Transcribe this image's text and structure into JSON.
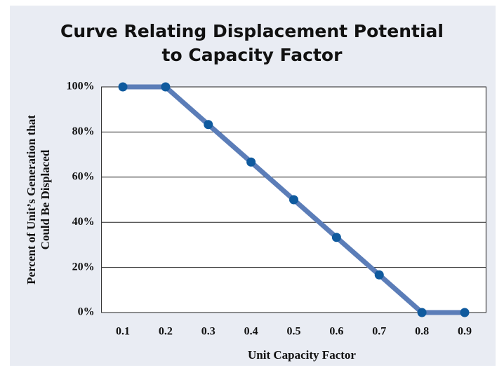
{
  "chart_data": {
    "type": "line",
    "title": [
      "Curve Relating Displacement Potential",
      "to Capacity Factor"
    ],
    "x_label": "Unit Capacity Factor",
    "y_label": [
      "Percent of Unit’s Generation that",
      "Could Be Displaced"
    ],
    "x": [
      0.1,
      0.2,
      0.3,
      0.4,
      0.5,
      0.6,
      0.7,
      0.8,
      0.9
    ],
    "values": [
      100,
      100,
      83.3,
      66.7,
      50,
      33.3,
      16.7,
      0,
      0
    ],
    "color": "#5b7db8",
    "marker_color": "#0f5a9e",
    "xlim": [
      0.05,
      0.95
    ],
    "xticks": [
      0.1,
      0.2,
      0.3,
      0.4,
      0.5,
      0.6,
      0.7,
      0.8,
      0.9
    ],
    "ylim": [
      0,
      100
    ],
    "yticks": [
      {
        "value": 0,
        "label": "0%"
      },
      {
        "value": 20,
        "label": "20%"
      },
      {
        "value": 40,
        "label": "40%"
      },
      {
        "value": 60,
        "label": "60%"
      },
      {
        "value": 80,
        "label": "80%"
      },
      {
        "value": 100,
        "label": "100%"
      }
    ],
    "grid": true
  }
}
